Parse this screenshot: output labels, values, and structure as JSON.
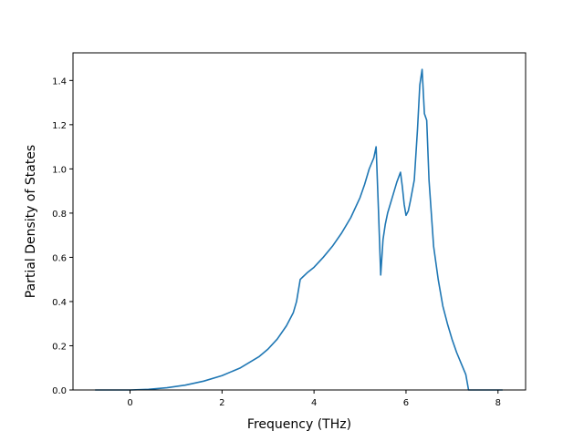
{
  "chart_data": {
    "type": "line",
    "title": "",
    "xlabel": "Frequency (THz)",
    "ylabel": "Partial Density of States",
    "xlim": [
      -1.24,
      8.6
    ],
    "ylim": [
      0.0,
      1.525
    ],
    "xticks": [
      0,
      2,
      4,
      6,
      8
    ],
    "xtick_labels": [
      "0",
      "2",
      "4",
      "6",
      "8"
    ],
    "yticks": [
      0.0,
      0.2,
      0.4,
      0.6,
      0.8,
      1.0,
      1.2,
      1.4
    ],
    "ytick_labels": [
      "0.0",
      "0.2",
      "0.4",
      "0.6",
      "0.8",
      "1.0",
      "1.2",
      "1.4"
    ],
    "grid": false,
    "line_color": "#1f77b4",
    "series": [
      {
        "x": [
          -0.76,
          -0.5,
          0.0,
          0.4,
          0.8,
          1.2,
          1.6,
          2.0,
          2.4,
          2.8,
          3.0,
          3.2,
          3.4,
          3.55,
          3.62,
          3.66,
          3.7,
          3.75,
          3.85,
          4.0,
          4.2,
          4.4,
          4.6,
          4.8,
          5.0,
          5.1,
          5.2,
          5.3,
          5.35,
          5.4,
          5.45,
          5.5,
          5.55,
          5.6,
          5.7,
          5.8,
          5.88,
          5.92,
          5.96,
          6.0,
          6.05,
          6.1,
          6.18,
          6.25,
          6.3,
          6.35,
          6.4,
          6.45,
          6.5,
          6.55,
          6.6,
          6.7,
          6.8,
          6.9,
          7.0,
          7.1,
          7.2,
          7.3,
          7.36,
          7.4,
          7.45,
          7.6,
          8.1
        ],
        "y": [
          0.0,
          0.0,
          0.0,
          0.003,
          0.01,
          0.022,
          0.04,
          0.065,
          0.1,
          0.15,
          0.185,
          0.23,
          0.29,
          0.35,
          0.4,
          0.45,
          0.5,
          0.51,
          0.53,
          0.555,
          0.6,
          0.65,
          0.71,
          0.78,
          0.87,
          0.93,
          1.0,
          1.05,
          1.1,
          0.82,
          0.52,
          0.68,
          0.75,
          0.8,
          0.87,
          0.94,
          0.985,
          0.92,
          0.84,
          0.79,
          0.81,
          0.86,
          0.95,
          1.18,
          1.38,
          1.45,
          1.25,
          1.22,
          0.95,
          0.8,
          0.65,
          0.5,
          0.38,
          0.3,
          0.23,
          0.17,
          0.12,
          0.07,
          0.0,
          0.0,
          0.0,
          0.0,
          0.0
        ]
      }
    ]
  }
}
